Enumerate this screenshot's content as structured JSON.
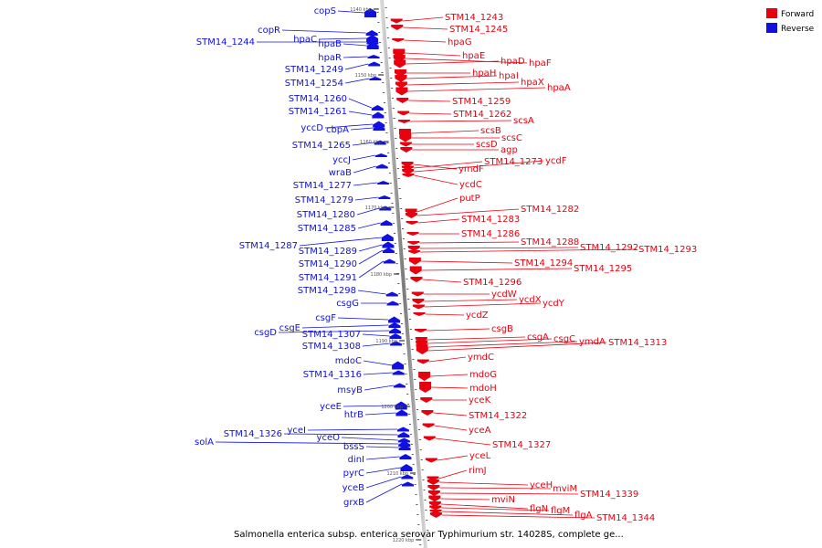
{
  "title": "Salmonella enterica subsp. enterica serovar Typhimurium str. 14028S, complete ge...",
  "legend": [
    {
      "label": "Forward",
      "color": "#e8000f"
    },
    {
      "label": "Reverse",
      "color": "#1010e0"
    }
  ],
  "colors": {
    "forward": "#e8000f",
    "reverse": "#1010e0",
    "axis": "#808080"
  },
  "ticks": [
    "1140 kbp",
    "1150 kbp",
    "1160 kbp",
    "1170 kbp",
    "1180 kbp",
    "1190 kbp",
    "1200 kbp",
    "1210 kbp",
    "1220 kbp"
  ],
  "forward_genes": [
    "STM14_1243",
    "STM14_1245",
    "hpaG",
    "hpaE",
    "hpaF",
    "hpaD",
    "hpaH",
    "hpaI",
    "hpaX",
    "hpaA",
    "STM14_1259",
    "STM14_1262",
    "scsA",
    "scsB",
    "scsC",
    "scsD",
    "agp",
    "ymdF",
    "STM14_1273",
    "ycdF",
    "ycdC",
    "putP",
    "STM14_1282",
    "STM14_1283",
    "STM14_1286",
    "STM14_1288",
    "STM14_1292",
    "STM14_1293",
    "STM14_1294",
    "STM14_1295",
    "STM14_1296",
    "ycdW",
    "ycdX",
    "ycdY",
    "ycdZ",
    "csgB",
    "csgA",
    "csgC",
    "ymdA",
    "STM14_1313",
    "ymdC",
    "mdoG",
    "mdoH",
    "yceK",
    "STM14_1322",
    "yceA",
    "STM14_1327",
    "yceL",
    "rimJ",
    "yceH",
    "mviM",
    "STM14_1339",
    "mviN",
    "flgN",
    "flgM",
    "flgA",
    "STM14_1344"
  ],
  "reverse_genes": [
    "copS",
    "copR",
    "hpaC",
    "STM14_1244",
    "hpaB",
    "hpaR",
    "STM14_1249",
    "STM14_1254",
    "STM14_1260",
    "STM14_1261",
    "yccD",
    "cbpA",
    "STM14_1265",
    "yccJ",
    "wraB",
    "STM14_1277",
    "STM14_1279",
    "STM14_1280",
    "STM14_1285",
    "STM14_1287",
    "STM14_1289",
    "STM14_1290",
    "STM14_1291",
    "STM14_1298",
    "csgG",
    "csgF",
    "csgE",
    "csgD",
    "STM14_1307",
    "STM14_1308",
    "mdoC",
    "STM14_1316",
    "msyB",
    "yceE",
    "htrB",
    "yceI",
    "STM14_1326",
    "yceO",
    "solA",
    "bssS",
    "dinI",
    "pyrC",
    "yceB",
    "grxB"
  ]
}
